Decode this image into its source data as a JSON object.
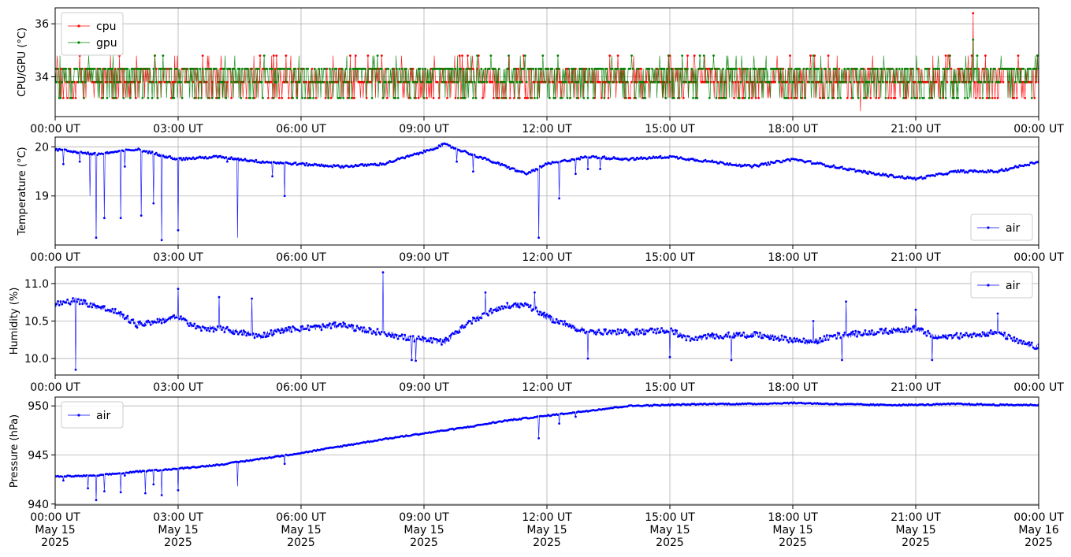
{
  "chart_data": [
    {
      "type": "line",
      "ylabel": "CPU/GPU (°C)",
      "xlabel": "",
      "ylim": [
        32.5,
        36.6
      ],
      "yticks": [
        34,
        36
      ],
      "grid": true,
      "legend": "upper left",
      "x_range": [
        "2025-05-15T00:00Z",
        "2025-05-16T00:00Z"
      ],
      "x_tick_labels": [
        "00:00 UT",
        "03:00 UT",
        "06:00 UT",
        "09:00 UT",
        "12:00 UT",
        "15:00 UT",
        "18:00 UT",
        "21:00 UT",
        "00:00 UT"
      ],
      "series": [
        {
          "name": "cpu",
          "color": "#ff0000",
          "baseline": 33.8,
          "levels": [
            33.2,
            33.8,
            34.3,
            34.8
          ],
          "spikes": [
            {
              "x": "2025-05-15T22:24Z",
              "y": 36.4
            },
            {
              "x": "2025-05-15T19:39Z",
              "y": 32.7
            }
          ]
        },
        {
          "name": "gpu",
          "color": "#008000",
          "baseline": 34.3,
          "levels": [
            33.2,
            33.8,
            34.3,
            34.8
          ],
          "spikes": [
            {
              "x": "2025-05-15T22:24Z",
              "y": 35.4
            }
          ]
        }
      ]
    },
    {
      "type": "line",
      "ylabel": "Temperature (°C)",
      "xlabel": "",
      "ylim": [
        18.0,
        20.2
      ],
      "yticks": [
        19,
        20
      ],
      "grid": true,
      "legend": "lower right",
      "x_range": [
        "2025-05-15T00:00Z",
        "2025-05-16T00:00Z"
      ],
      "x_tick_labels": [
        "00:00 UT",
        "03:00 UT",
        "06:00 UT",
        "09:00 UT",
        "12:00 UT",
        "15:00 UT",
        "18:00 UT",
        "21:00 UT",
        "00:00 UT"
      ],
      "series": [
        {
          "name": "air",
          "color": "#0000ff",
          "profile": [
            [
              0,
              19.95
            ],
            [
              1,
              19.85
            ],
            [
              2,
              19.95
            ],
            [
              3,
              19.75
            ],
            [
              4,
              19.8
            ],
            [
              5,
              19.7
            ],
            [
              6,
              19.65
            ],
            [
              7,
              19.6
            ],
            [
              8,
              19.65
            ],
            [
              9,
              19.9
            ],
            [
              9.5,
              20.05
            ],
            [
              10,
              19.9
            ],
            [
              11,
              19.6
            ],
            [
              11.5,
              19.45
            ],
            [
              12,
              19.65
            ],
            [
              13,
              19.8
            ],
            [
              14,
              19.75
            ],
            [
              15,
              19.8
            ],
            [
              16,
              19.7
            ],
            [
              17,
              19.6
            ],
            [
              18,
              19.75
            ],
            [
              19,
              19.6
            ],
            [
              20,
              19.45
            ],
            [
              21,
              19.35
            ],
            [
              22,
              19.5
            ],
            [
              23,
              19.5
            ],
            [
              24,
              19.7
            ]
          ],
          "dips": [
            [
              0.2,
              19.65
            ],
            [
              0.6,
              19.7
            ],
            [
              0.85,
              19.0
            ],
            [
              1.0,
              18.15
            ],
            [
              1.2,
              18.55
            ],
            [
              1.6,
              18.55
            ],
            [
              1.7,
              19.6
            ],
            [
              2.1,
              18.6
            ],
            [
              2.4,
              18.85
            ],
            [
              2.6,
              18.1
            ],
            [
              3.0,
              18.3
            ],
            [
              4.2,
              19.7
            ],
            [
              4.45,
              18.15
            ],
            [
              5.3,
              19.4
            ],
            [
              5.6,
              19.0
            ],
            [
              9.8,
              19.7
            ],
            [
              10.2,
              19.5
            ],
            [
              11.8,
              18.15
            ],
            [
              12.3,
              18.95
            ],
            [
              12.7,
              19.45
            ],
            [
              13.0,
              19.55
            ],
            [
              13.3,
              19.55
            ]
          ]
        }
      ]
    },
    {
      "type": "line",
      "ylabel": "Humidity (%)",
      "xlabel": "",
      "ylim": [
        9.78,
        11.22
      ],
      "yticks": [
        10.0,
        10.5,
        11.0
      ],
      "grid": true,
      "legend": "upper right",
      "x_range": [
        "2025-05-15T00:00Z",
        "2025-05-16T00:00Z"
      ],
      "x_tick_labels": [
        "00:00 UT",
        "03:00 UT",
        "06:00 UT",
        "09:00 UT",
        "12:00 UT",
        "15:00 UT",
        "18:00 UT",
        "21:00 UT",
        "00:00 UT"
      ],
      "series": [
        {
          "name": "air",
          "color": "#0000ff",
          "profile": [
            [
              0,
              10.72
            ],
            [
              0.5,
              10.78
            ],
            [
              1,
              10.7
            ],
            [
              1.5,
              10.62
            ],
            [
              2,
              10.45
            ],
            [
              2.5,
              10.5
            ],
            [
              3,
              10.55
            ],
            [
              3.5,
              10.4
            ],
            [
              4,
              10.4
            ],
            [
              4.5,
              10.35
            ],
            [
              5,
              10.3
            ],
            [
              5.5,
              10.38
            ],
            [
              6,
              10.4
            ],
            [
              6.5,
              10.42
            ],
            [
              7,
              10.45
            ],
            [
              7.5,
              10.38
            ],
            [
              8,
              10.35
            ],
            [
              8.5,
              10.28
            ],
            [
              9,
              10.25
            ],
            [
              9.5,
              10.22
            ],
            [
              10,
              10.45
            ],
            [
              10.5,
              10.6
            ],
            [
              11,
              10.7
            ],
            [
              11.5,
              10.72
            ],
            [
              12,
              10.55
            ],
            [
              12.5,
              10.45
            ],
            [
              13,
              10.35
            ],
            [
              14,
              10.35
            ],
            [
              15,
              10.38
            ],
            [
              15.5,
              10.25
            ],
            [
              16,
              10.3
            ],
            [
              17,
              10.32
            ],
            [
              18,
              10.25
            ],
            [
              18.5,
              10.22
            ],
            [
              19,
              10.3
            ],
            [
              20,
              10.35
            ],
            [
              21,
              10.4
            ],
            [
              21.5,
              10.28
            ],
            [
              22,
              10.3
            ],
            [
              23,
              10.35
            ],
            [
              23.5,
              10.22
            ],
            [
              24,
              10.15
            ]
          ],
          "spikes": [
            [
              0.5,
              9.85
            ],
            [
              3.0,
              10.93
            ],
            [
              4.0,
              10.82
            ],
            [
              4.8,
              10.8
            ],
            [
              8.0,
              11.15
            ],
            [
              8.7,
              9.98
            ],
            [
              8.8,
              9.97
            ],
            [
              10.5,
              10.88
            ],
            [
              11.7,
              10.88
            ],
            [
              13.0,
              10.0
            ],
            [
              15.0,
              10.02
            ],
            [
              16.5,
              9.98
            ],
            [
              18.5,
              10.5
            ],
            [
              19.2,
              9.98
            ],
            [
              19.3,
              10.76
            ],
            [
              21.0,
              10.65
            ],
            [
              21.4,
              9.98
            ],
            [
              23.0,
              10.6
            ]
          ]
        }
      ]
    },
    {
      "type": "line",
      "ylabel": "Pressure (hPa)",
      "xlabel": "",
      "ylim": [
        939.9,
        950.9
      ],
      "yticks": [
        940,
        945,
        950
      ],
      "grid": true,
      "legend": "upper left",
      "x_range": [
        "2025-05-15T00:00Z",
        "2025-05-16T00:00Z"
      ],
      "x_tick_labels": [
        "00:00 UT\nMay 15\n2025",
        "03:00 UT\nMay 15\n2025",
        "06:00 UT\nMay 15\n2025",
        "09:00 UT\nMay 15\n2025",
        "12:00 UT\nMay 15\n2025",
        "15:00 UT\nMay 15\n2025",
        "18:00 UT\nMay 15\n2025",
        "21:00 UT\nMay 15\n2025",
        "00:00 UT\nMay 16\n2025"
      ],
      "series": [
        {
          "name": "air",
          "color": "#0000ff",
          "profile": [
            [
              0,
              942.8
            ],
            [
              1,
              942.9
            ],
            [
              2,
              943.3
            ],
            [
              3,
              943.6
            ],
            [
              4,
              944.0
            ],
            [
              5,
              944.6
            ],
            [
              6,
              945.2
            ],
            [
              7,
              945.9
            ],
            [
              8,
              946.6
            ],
            [
              9,
              947.2
            ],
            [
              10,
              947.8
            ],
            [
              11,
              948.5
            ],
            [
              12,
              949.0
            ],
            [
              13,
              949.5
            ],
            [
              14,
              950.0
            ],
            [
              15,
              950.1
            ],
            [
              16,
              950.2
            ],
            [
              17,
              950.2
            ],
            [
              18,
              950.3
            ],
            [
              19,
              950.2
            ],
            [
              20,
              950.1
            ],
            [
              21,
              950.1
            ],
            [
              22,
              950.2
            ],
            [
              23,
              950.1
            ],
            [
              24,
              950.1
            ]
          ],
          "dips": [
            [
              0.2,
              942.4
            ],
            [
              0.8,
              941.6
            ],
            [
              1.0,
              940.4
            ],
            [
              1.2,
              941.3
            ],
            [
              1.6,
              941.2
            ],
            [
              1.7,
              942.9
            ],
            [
              2.2,
              941.1
            ],
            [
              2.4,
              942.0
            ],
            [
              2.6,
              940.9
            ],
            [
              3.0,
              941.4
            ],
            [
              4.45,
              941.8
            ],
            [
              5.6,
              944.1
            ],
            [
              11.8,
              946.7
            ],
            [
              12.3,
              948.2
            ],
            [
              12.7,
              948.9
            ]
          ]
        }
      ]
    }
  ]
}
